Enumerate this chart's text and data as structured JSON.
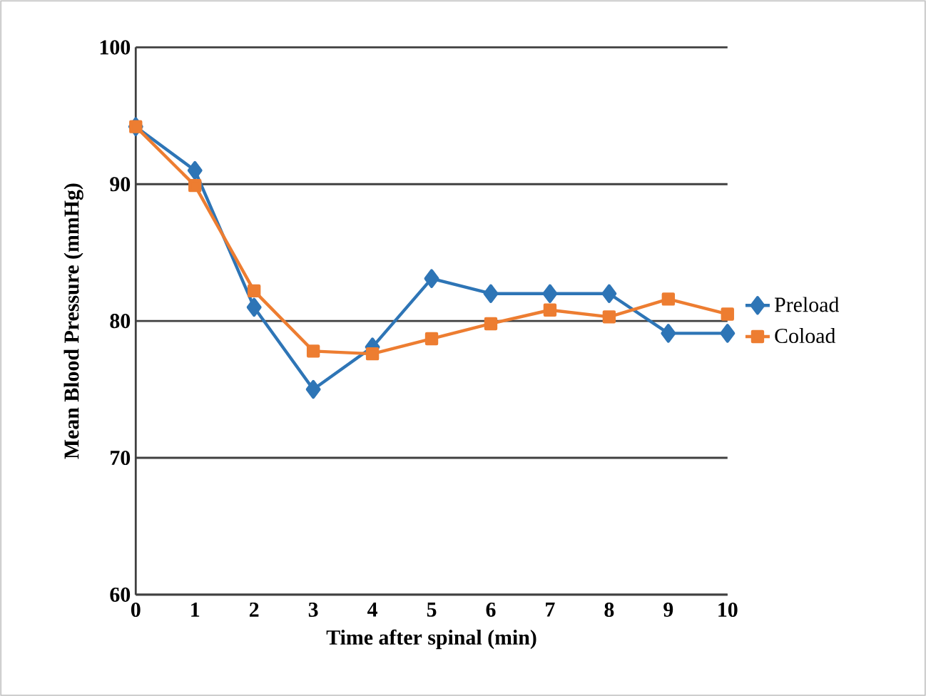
{
  "chart_data": {
    "type": "line",
    "xlabel": "Time after spinal (min)",
    "ylabel": "Mean Blood Pressure (mmHg)",
    "x": [
      0,
      1,
      2,
      3,
      4,
      5,
      6,
      7,
      8,
      9,
      10
    ],
    "series": [
      {
        "name": "Preload",
        "color": "#2e75b6",
        "marker": "diamond",
        "values": [
          94.2,
          91.0,
          81.0,
          75.0,
          78.1,
          83.1,
          82.0,
          82.0,
          82.0,
          79.1,
          79.1
        ]
      },
      {
        "name": "Coload",
        "color": "#ed7d31",
        "marker": "square",
        "values": [
          94.2,
          89.9,
          82.2,
          77.8,
          77.6,
          78.7,
          79.8,
          80.8,
          80.3,
          81.6,
          80.5
        ]
      }
    ],
    "xlim": [
      0,
      10
    ],
    "xticks": [
      0,
      1,
      2,
      3,
      4,
      5,
      6,
      7,
      8,
      9,
      10
    ],
    "ylim": [
      60,
      100
    ],
    "yticks": [
      60,
      70,
      80,
      90,
      100
    ],
    "grid": "y",
    "legend": "right",
    "line_style": "solid"
  }
}
